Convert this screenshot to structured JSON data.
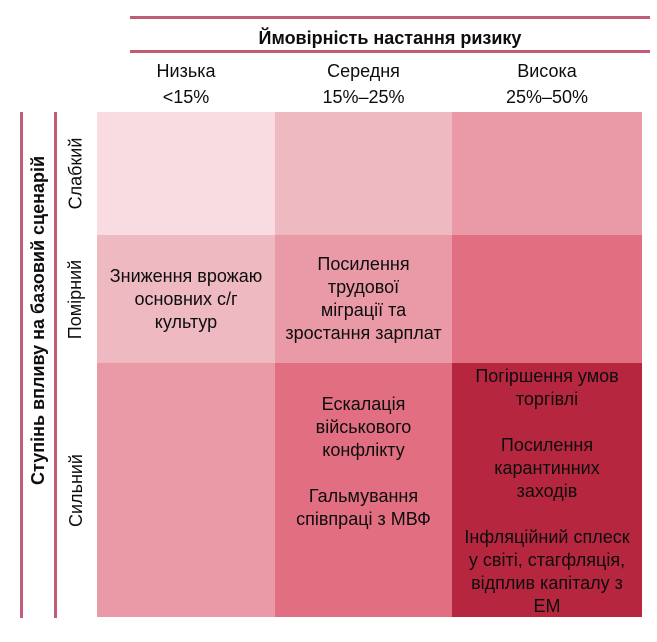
{
  "header": {
    "title": "Ймовірність настання ризику",
    "columns": [
      {
        "label": "Низька",
        "range": "<15%"
      },
      {
        "label": "Середня",
        "range": "15%–25%"
      },
      {
        "label": "Висока",
        "range": "25%–50%"
      }
    ]
  },
  "left_axis": {
    "title": "Ступінь впливу на базовий сценарій",
    "rows": [
      "Слабкий",
      "Помірний",
      "Сильний"
    ]
  },
  "colors": {
    "level1": "#f8dce1",
    "level2": "#efb9c2",
    "level3": "#ea9aa7",
    "level4": "#e26e81",
    "level5": "#b7263f",
    "rule": "#c05c76",
    "text": "#0d0d0d"
  },
  "matrix": {
    "cells": [
      {
        "row": 0,
        "col": 0,
        "level": "level1",
        "items": []
      },
      {
        "row": 0,
        "col": 1,
        "level": "level2",
        "items": []
      },
      {
        "row": 0,
        "col": 2,
        "level": "level3",
        "items": []
      },
      {
        "row": 1,
        "col": 0,
        "level": "level2",
        "items": [
          [
            "Зниження врожаю",
            "основних с/г",
            "культур"
          ]
        ]
      },
      {
        "row": 1,
        "col": 1,
        "level": "level3",
        "items": [
          [
            "Посилення трудової",
            "міграції та",
            "зростання зарплат"
          ]
        ]
      },
      {
        "row": 1,
        "col": 2,
        "level": "level4",
        "items": []
      },
      {
        "row": 2,
        "col": 0,
        "level": "level3",
        "items": []
      },
      {
        "row": 2,
        "col": 1,
        "level": "level4",
        "items": [
          [
            "Ескалація",
            "військового",
            "конфлікту"
          ],
          [
            "Гальмування",
            "співпраці з МВФ"
          ]
        ]
      },
      {
        "row": 2,
        "col": 2,
        "level": "level5",
        "items": [
          [
            "Погіршення умов",
            "торгівлі"
          ],
          [
            "Посилення",
            "карантинних",
            "заходів"
          ],
          [
            "Інфляційний сплеск",
            "у світі, стагфляція,",
            "відплив капіталу з",
            "ЕМ"
          ]
        ]
      }
    ]
  },
  "chart_data": {
    "type": "heatmap",
    "title": "Ймовірність настання ризику",
    "x_axis": {
      "title": "Ймовірність настання ризику",
      "categories": [
        "Низька",
        "Середня",
        "Висока"
      ],
      "ranges": [
        "<15%",
        "15%–25%",
        "25%–50%"
      ]
    },
    "y_axis": {
      "title": "Ступінь впливу на базовий сценарій",
      "categories": [
        "Слабкий",
        "Помірний",
        "Сильний"
      ]
    },
    "legend_position": "none",
    "grid": false,
    "intensity_levels": [
      [
        1,
        2,
        3
      ],
      [
        2,
        3,
        4
      ],
      [
        3,
        4,
        5
      ]
    ],
    "cell_risks": [
      {
        "impact": "Помірний",
        "probability": "Низька",
        "risks": [
          "Зниження врожаю основних с/г культур"
        ]
      },
      {
        "impact": "Помірний",
        "probability": "Середня",
        "risks": [
          "Посилення трудової міграції та зростання зарплат"
        ]
      },
      {
        "impact": "Сильний",
        "probability": "Середня",
        "risks": [
          "Ескалація військового конфлікту",
          "Гальмування співпраці з МВФ"
        ]
      },
      {
        "impact": "Сильний",
        "probability": "Висока",
        "risks": [
          "Погіршення умов торгівлі",
          "Посилення карантинних заходів",
          "Інфляційний сплеск у світі, стагфляція, відплив капіталу з ЕМ"
        ]
      }
    ]
  }
}
